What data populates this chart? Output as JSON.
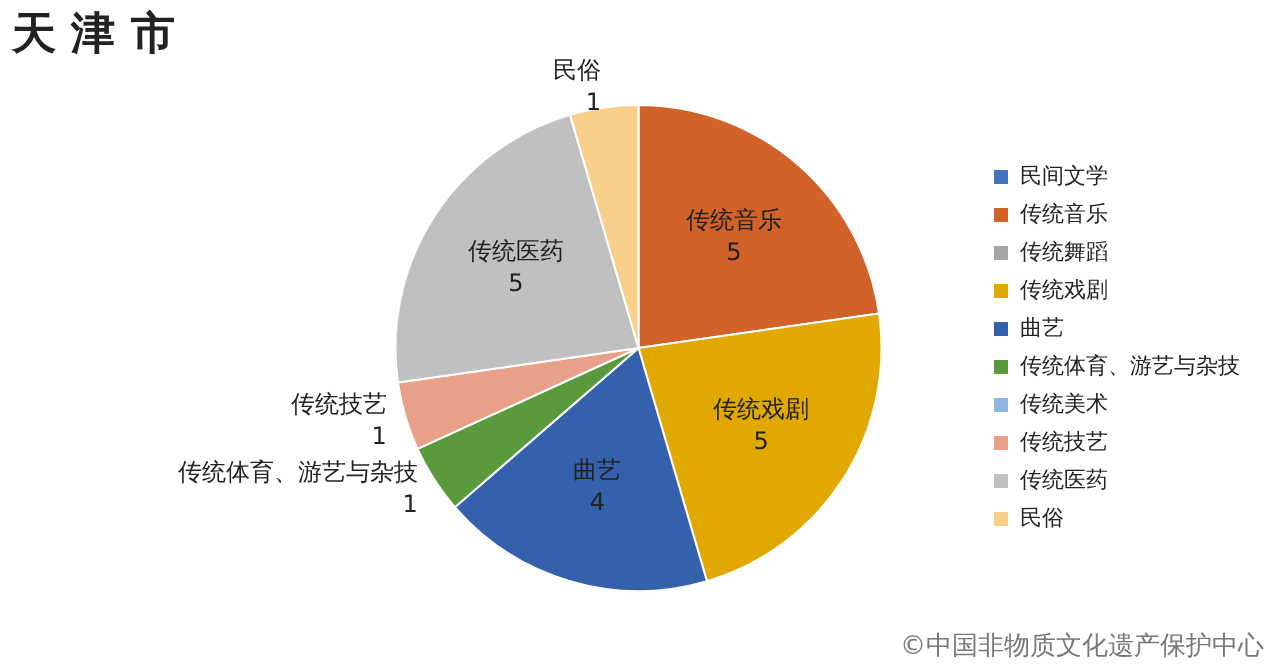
{
  "chart_data": {
    "type": "pie",
    "title": "天 津 市",
    "categories": [
      "民间文学",
      "传统音乐",
      "传统舞蹈",
      "传统戏剧",
      "曲艺",
      "传统体育、游艺与杂技",
      "传统美术",
      "传统技艺",
      "传统医药",
      "民俗"
    ],
    "values": [
      0,
      5,
      0,
      5,
      4,
      1,
      0,
      1,
      5,
      1
    ],
    "colors": [
      "#4472c4",
      "#d0622a",
      "#a5a5a5",
      "#e0a800",
      "#3560ac",
      "#5b9a3c",
      "#8db4e2",
      "#e8a088",
      "#c0c0c0",
      "#f8d08c"
    ],
    "data_labels": true,
    "legend": "right",
    "annotations": [
      "©中国非物质文化遗产保护中心"
    ]
  }
}
